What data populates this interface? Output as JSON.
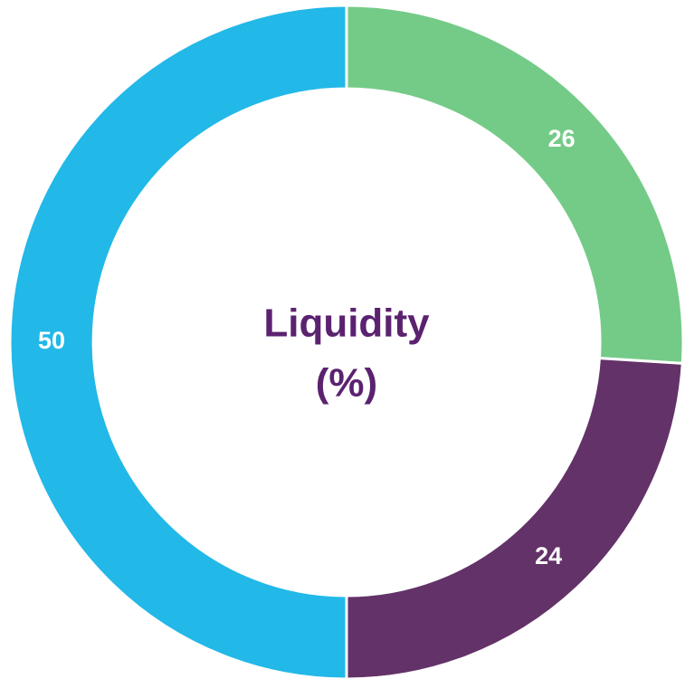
{
  "chart_data": {
    "type": "donut",
    "title": "Liquidity",
    "subtitle": "(%)",
    "values": [
      26,
      24,
      50
    ],
    "colors": [
      "#74cb87",
      "#633268",
      "#22b8e8"
    ],
    "start_angle": 0,
    "direction": "clockwise"
  }
}
